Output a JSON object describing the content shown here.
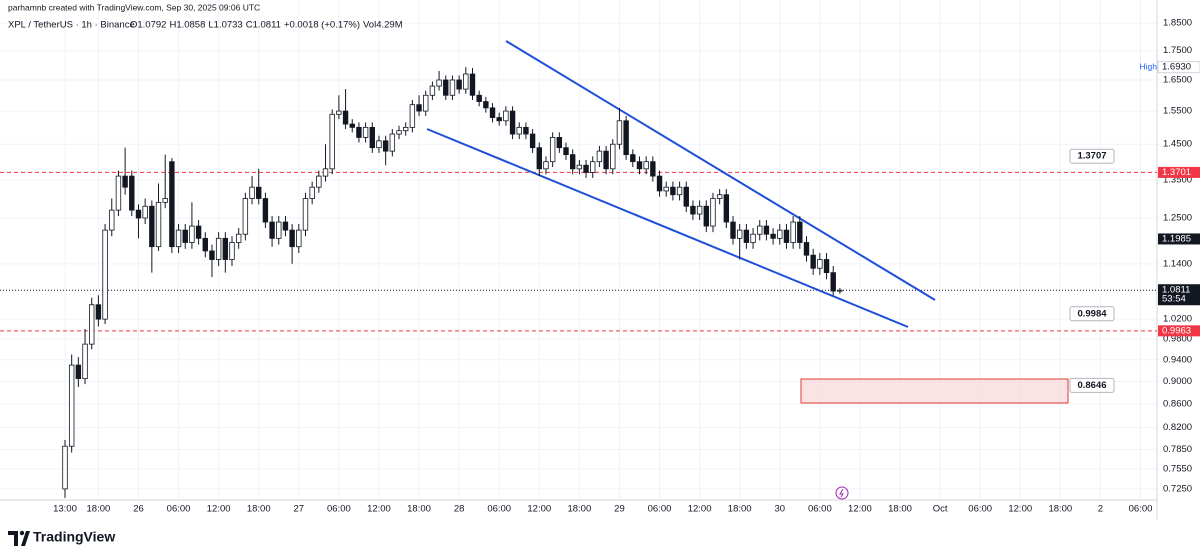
{
  "header": {
    "credit": "parhamnb created with TradingView.com, Sep 30, 2025 09:06 UTC",
    "symbol": "XPL / TetherUS · 1h · Binance",
    "legend": [
      "O1.0792",
      "H1.0858",
      "L1.0733",
      "C1.0811",
      "+0.0018 (+0.17%)",
      "Vol4.29M"
    ]
  },
  "footer": {
    "brand": "TradingView"
  },
  "chart_data": {
    "type": "candlestick",
    "log": true,
    "grid": true,
    "up_color": "#ffffff",
    "down_color": "#131722",
    "outline_color": "#131722",
    "x": [
      0,
      1,
      2,
      3,
      4,
      5,
      6,
      7,
      8,
      9,
      10,
      11,
      12,
      13,
      14,
      15,
      16,
      17,
      18,
      19,
      20,
      21,
      22,
      23,
      24,
      25,
      26,
      27,
      28,
      29,
      30,
      31,
      32,
      33,
      34,
      35,
      36,
      37,
      38,
      39,
      40,
      41,
      42,
      43,
      44,
      45,
      46,
      47,
      48,
      49,
      50,
      51,
      52,
      53,
      54,
      55,
      56,
      57,
      58,
      59,
      60,
      61,
      62,
      63,
      64,
      65,
      66,
      67,
      68,
      69,
      70,
      71,
      72,
      73,
      74,
      75,
      76,
      77,
      78,
      79,
      80,
      81,
      82,
      83,
      84,
      85,
      86,
      87,
      88,
      89,
      90,
      91,
      92,
      93,
      94,
      95,
      96,
      97,
      98,
      99,
      100,
      101,
      102,
      103,
      104,
      105,
      106,
      107,
      108,
      109,
      110,
      111,
      112,
      113,
      114,
      115,
      116
    ],
    "open": [
      0.725,
      0.79,
      0.93,
      0.905,
      0.97,
      1.05,
      1.02,
      1.22,
      1.27,
      1.36,
      1.36,
      1.27,
      1.25,
      1.28,
      1.18,
      1.29,
      1.4,
      1.18,
      1.22,
      1.19,
      1.23,
      1.2,
      1.17,
      1.15,
      1.2,
      1.15,
      1.19,
      1.21,
      1.3,
      1.33,
      1.3,
      1.24,
      1.2,
      1.24,
      1.22,
      1.18,
      1.22,
      1.3,
      1.33,
      1.36,
      1.38,
      1.54,
      1.55,
      1.51,
      1.5,
      1.47,
      1.5,
      1.44,
      1.46,
      1.43,
      1.48,
      1.49,
      1.5,
      1.57,
      1.55,
      1.6,
      1.63,
      1.65,
      1.6,
      1.65,
      1.62,
      1.67,
      1.6,
      1.58,
      1.56,
      1.53,
      1.52,
      1.55,
      1.48,
      1.5,
      1.48,
      1.44,
      1.38,
      1.4,
      1.47,
      1.44,
      1.42,
      1.38,
      1.39,
      1.37,
      1.4,
      1.43,
      1.38,
      1.45,
      1.52,
      1.42,
      1.4,
      1.38,
      1.4,
      1.36,
      1.32,
      1.33,
      1.31,
      1.33,
      1.28,
      1.26,
      1.28,
      1.23,
      1.3,
      1.31,
      1.24,
      1.2,
      1.22,
      1.19,
      1.21,
      1.23,
      1.21,
      1.2,
      1.22,
      1.19,
      1.24,
      1.19,
      1.16,
      1.13,
      1.15,
      1.12,
      1.0792
    ],
    "high": [
      0.8,
      0.95,
      0.945,
      1.0,
      1.065,
      1.07,
      1.235,
      1.3,
      1.375,
      1.44,
      1.375,
      1.285,
      1.3,
      1.295,
      1.34,
      1.42,
      1.41,
      1.235,
      1.235,
      1.29,
      1.245,
      1.215,
      1.185,
      1.215,
      1.215,
      1.205,
      1.225,
      1.315,
      1.36,
      1.38,
      1.315,
      1.255,
      1.255,
      1.255,
      1.235,
      1.235,
      1.315,
      1.345,
      1.375,
      1.45,
      1.555,
      1.6,
      1.62,
      1.525,
      1.515,
      1.515,
      1.515,
      1.475,
      1.475,
      1.495,
      1.505,
      1.515,
      1.585,
      1.6,
      1.615,
      1.645,
      1.68,
      1.665,
      1.665,
      1.665,
      1.693,
      1.69,
      1.615,
      1.595,
      1.575,
      1.545,
      1.565,
      1.565,
      1.515,
      1.515,
      1.495,
      1.455,
      1.415,
      1.485,
      1.485,
      1.455,
      1.435,
      1.405,
      1.405,
      1.415,
      1.445,
      1.445,
      1.465,
      1.56,
      1.535,
      1.435,
      1.415,
      1.415,
      1.415,
      1.375,
      1.345,
      1.345,
      1.345,
      1.345,
      1.295,
      1.295,
      1.295,
      1.315,
      1.325,
      1.325,
      1.255,
      1.235,
      1.235,
      1.225,
      1.245,
      1.245,
      1.225,
      1.235,
      1.235,
      1.255,
      1.255,
      1.205,
      1.175,
      1.165,
      1.165,
      1.135,
      1.0858
    ],
    "low": [
      0.712,
      0.78,
      0.89,
      0.895,
      0.96,
      1.005,
      1.01,
      1.205,
      1.255,
      1.31,
      1.255,
      1.2,
      1.235,
      1.12,
      1.17,
      1.275,
      1.165,
      1.165,
      1.175,
      1.175,
      1.185,
      1.155,
      1.11,
      1.135,
      1.12,
      1.135,
      1.175,
      1.195,
      1.285,
      1.285,
      1.225,
      1.18,
      1.185,
      1.205,
      1.14,
      1.165,
      1.205,
      1.285,
      1.315,
      1.345,
      1.365,
      1.525,
      1.495,
      1.485,
      1.455,
      1.455,
      1.425,
      1.425,
      1.39,
      1.415,
      1.465,
      1.475,
      1.485,
      1.535,
      1.535,
      1.585,
      1.615,
      1.585,
      1.585,
      1.605,
      1.605,
      1.585,
      1.565,
      1.545,
      1.515,
      1.505,
      1.505,
      1.465,
      1.465,
      1.465,
      1.425,
      1.36,
      1.365,
      1.385,
      1.425,
      1.405,
      1.365,
      1.365,
      1.355,
      1.355,
      1.385,
      1.365,
      1.365,
      1.435,
      1.405,
      1.385,
      1.365,
      1.365,
      1.345,
      1.305,
      1.305,
      1.295,
      1.295,
      1.265,
      1.245,
      1.245,
      1.215,
      1.215,
      1.285,
      1.225,
      1.185,
      1.15,
      1.175,
      1.175,
      1.195,
      1.195,
      1.185,
      1.185,
      1.175,
      1.175,
      1.175,
      1.145,
      1.115,
      1.115,
      1.105,
      1.07,
      1.0733
    ],
    "close": [
      0.79,
      0.93,
      0.905,
      0.97,
      1.05,
      1.02,
      1.22,
      1.27,
      1.36,
      1.33,
      1.27,
      1.25,
      1.28,
      1.18,
      1.29,
      1.3,
      1.18,
      1.22,
      1.19,
      1.23,
      1.2,
      1.17,
      1.15,
      1.2,
      1.15,
      1.19,
      1.21,
      1.3,
      1.33,
      1.3,
      1.24,
      1.2,
      1.24,
      1.22,
      1.18,
      1.22,
      1.3,
      1.33,
      1.36,
      1.38,
      1.54,
      1.55,
      1.51,
      1.5,
      1.47,
      1.5,
      1.44,
      1.46,
      1.43,
      1.48,
      1.49,
      1.5,
      1.57,
      1.55,
      1.6,
      1.63,
      1.65,
      1.6,
      1.65,
      1.62,
      1.67,
      1.6,
      1.58,
      1.56,
      1.53,
      1.52,
      1.55,
      1.48,
      1.5,
      1.48,
      1.44,
      1.38,
      1.4,
      1.47,
      1.44,
      1.42,
      1.38,
      1.39,
      1.37,
      1.4,
      1.43,
      1.38,
      1.45,
      1.52,
      1.42,
      1.4,
      1.38,
      1.4,
      1.36,
      1.32,
      1.33,
      1.31,
      1.33,
      1.28,
      1.26,
      1.28,
      1.23,
      1.3,
      1.31,
      1.24,
      1.2,
      1.22,
      1.19,
      1.21,
      1.23,
      1.21,
      1.2,
      1.22,
      1.19,
      1.24,
      1.19,
      1.16,
      1.13,
      1.15,
      1.12,
      1.0793,
      1.0811
    ],
    "xlim": [
      -9.73,
      163.17
    ],
    "xticks": [
      {
        "value": 0,
        "label": "13:00"
      },
      {
        "value": 5,
        "label": "18:00"
      },
      {
        "value": 11,
        "label": "26"
      },
      {
        "value": 17,
        "label": "06:00"
      },
      {
        "value": 23,
        "label": "12:00"
      },
      {
        "value": 29,
        "label": "18:00"
      },
      {
        "value": 35,
        "label": "27"
      },
      {
        "value": 41,
        "label": "06:00"
      },
      {
        "value": 47,
        "label": "12:00"
      },
      {
        "value": 53,
        "label": "18:00"
      },
      {
        "value": 59,
        "label": "28"
      },
      {
        "value": 65,
        "label": "06:00"
      },
      {
        "value": 71,
        "label": "12:00"
      },
      {
        "value": 77,
        "label": "18:00"
      },
      {
        "value": 83,
        "label": "29"
      },
      {
        "value": 89,
        "label": "06:00"
      },
      {
        "value": 95,
        "label": "12:00"
      },
      {
        "value": 101,
        "label": "18:00"
      },
      {
        "value": 107,
        "label": "30"
      },
      {
        "value": 113,
        "label": "06:00"
      },
      {
        "value": 119,
        "label": "12:00"
      },
      {
        "value": 125,
        "label": "18:00"
      },
      {
        "value": 131,
        "label": "Oct"
      },
      {
        "value": 137,
        "label": "06:00"
      },
      {
        "value": 143,
        "label": "12:00"
      },
      {
        "value": 149,
        "label": "18:00"
      },
      {
        "value": 155,
        "label": "2"
      },
      {
        "value": 161,
        "label": "06:00"
      }
    ],
    "ylim": [
      0.709,
      1.907
    ],
    "yticks": [
      {
        "value": 1.85,
        "label": "1.8500"
      },
      {
        "value": 1.75,
        "label": "1.7500"
      },
      {
        "value": 1.65,
        "label": "1.6500"
      },
      {
        "value": 1.55,
        "label": "1.5500"
      },
      {
        "value": 1.45,
        "label": "1.4500"
      },
      {
        "value": 1.35,
        "label": "1.3500"
      },
      {
        "value": 1.25,
        "label": "1.2500"
      },
      {
        "value": 1.14,
        "label": "1.1400"
      },
      {
        "value": 1.02,
        "label": "1.0200"
      },
      {
        "value": 0.98,
        "label": "0.9800"
      },
      {
        "value": 0.94,
        "label": "0.9400"
      },
      {
        "value": 0.9,
        "label": "0.9000"
      },
      {
        "value": 0.86,
        "label": "0.8600"
      },
      {
        "value": 0.82,
        "label": "0.8200"
      },
      {
        "value": 0.785,
        "label": "0.7850"
      },
      {
        "value": 0.755,
        "label": "0.7550"
      },
      {
        "value": 0.725,
        "label": "0.7250"
      }
    ],
    "levels": [
      {
        "value": 1.3701,
        "color": "#f23645"
      },
      {
        "value": 0.9963,
        "color": "#f23645"
      }
    ],
    "high_tag": {
      "name": "High",
      "value": 1.693,
      "label": "1.6930"
    },
    "mark_tag": {
      "value": 1.1985
    },
    "current": {
      "value": 1.0811,
      "countdown": "53:54"
    },
    "callouts": [
      1.3707,
      0.9984,
      0.8646
    ]
  }
}
